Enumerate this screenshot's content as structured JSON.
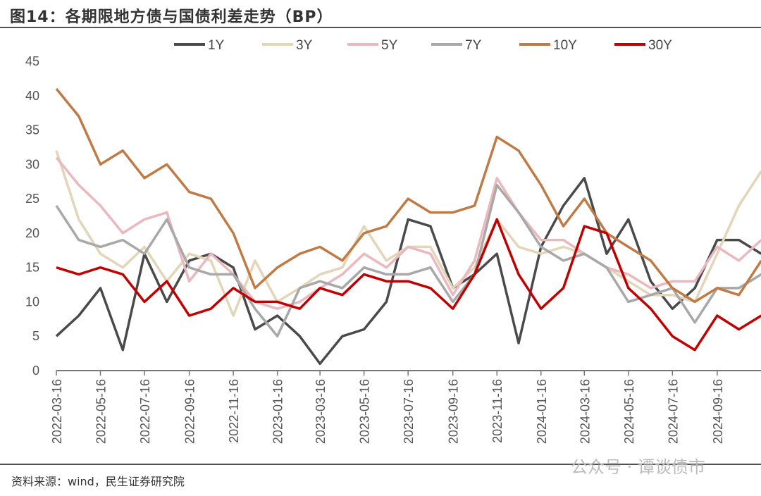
{
  "title": "图14：各期限地方债与国债利差走势（BP）",
  "source": "资料来源：wind，民生证券研究院",
  "watermark": "公众号 · 谭谈债市",
  "chart_data": {
    "type": "line",
    "title": "图14：各期限地方债与国债利差走势（BP）",
    "xlabel": "",
    "ylabel": "",
    "ylim": [
      0,
      45
    ],
    "yticks": [
      "0",
      "5",
      "10",
      "15",
      "20",
      "25",
      "30",
      "35",
      "40",
      "45"
    ],
    "xtick_labels": [
      "2022-03-16",
      "2022-05-16",
      "2022-07-16",
      "2022-09-16",
      "2022-11-16",
      "2023-01-16",
      "2023-03-16",
      "2023-05-16",
      "2023-07-16",
      "2023-09-16",
      "2023-11-16",
      "2024-01-16",
      "2024-03-16",
      "2024-05-16",
      "2024-07-16",
      "2024-09-16"
    ],
    "legend_position": "top",
    "grid": false,
    "x": [
      "2022-03-16",
      "2022-04-16",
      "2022-05-16",
      "2022-06-16",
      "2022-07-16",
      "2022-08-16",
      "2022-09-16",
      "2022-10-16",
      "2022-11-16",
      "2022-12-16",
      "2023-01-16",
      "2023-02-16",
      "2023-03-16",
      "2023-04-16",
      "2023-05-16",
      "2023-06-16",
      "2023-07-16",
      "2023-08-16",
      "2023-09-16",
      "2023-10-16",
      "2023-11-16",
      "2023-12-16",
      "2024-01-16",
      "2024-02-16",
      "2024-03-16",
      "2024-04-16",
      "2024-05-16",
      "2024-06-16",
      "2024-07-16",
      "2024-08-16",
      "2024-09-16",
      "2024-10-16",
      "2024-11-16"
    ],
    "series": [
      {
        "name": "1Y",
        "color": "#4a4a4a",
        "values": [
          5,
          8,
          12,
          3,
          17,
          10,
          16,
          17,
          15,
          6,
          8,
          5,
          1,
          5,
          6,
          10,
          22,
          21,
          12,
          14,
          17,
          4,
          18,
          24,
          28,
          17,
          22,
          13,
          9,
          12,
          19,
          19,
          17
        ]
      },
      {
        "name": "3Y",
        "color": "#e3d6b8",
        "values": [
          32,
          22,
          17,
          15,
          18,
          13,
          17,
          16,
          8,
          16,
          10,
          12,
          14,
          15,
          21,
          16,
          18,
          18,
          12,
          15,
          22,
          18,
          17,
          18,
          17,
          15,
          13,
          11,
          11,
          10,
          17,
          24,
          29
        ]
      },
      {
        "name": "5Y",
        "color": "#eab8bf",
        "values": [
          31,
          27,
          24,
          20,
          22,
          23,
          13,
          17,
          14,
          10,
          9,
          10,
          12,
          14,
          17,
          15,
          18,
          17,
          11,
          16,
          28,
          23,
          19,
          19,
          17,
          15,
          14,
          12,
          13,
          13,
          18,
          16,
          19
        ]
      },
      {
        "name": "7Y",
        "color": "#a8a8a8",
        "values": [
          24,
          19,
          18,
          19,
          17,
          22,
          15,
          14,
          14,
          9,
          5,
          12,
          13,
          12,
          15,
          14,
          14,
          15,
          10,
          14,
          27,
          23,
          18,
          16,
          17,
          15,
          10,
          11,
          12,
          7,
          12,
          12,
          14
        ]
      },
      {
        "name": "10Y",
        "color": "#c07a45",
        "values": [
          41,
          37,
          30,
          32,
          28,
          30,
          26,
          25,
          20,
          12,
          15,
          17,
          18,
          16,
          20,
          21,
          25,
          23,
          23,
          24,
          34,
          32,
          27,
          21,
          25,
          20,
          18,
          16,
          12,
          10,
          12,
          11,
          16
        ]
      },
      {
        "name": "30Y",
        "color": "#c00000",
        "values": [
          15,
          14,
          15,
          14,
          10,
          13,
          8,
          9,
          12,
          10,
          10,
          9,
          12,
          11,
          14,
          13,
          13,
          12,
          9,
          14,
          22,
          14,
          9,
          12,
          21,
          20,
          12,
          9,
          5,
          3,
          8,
          6,
          8
        ]
      }
    ]
  }
}
